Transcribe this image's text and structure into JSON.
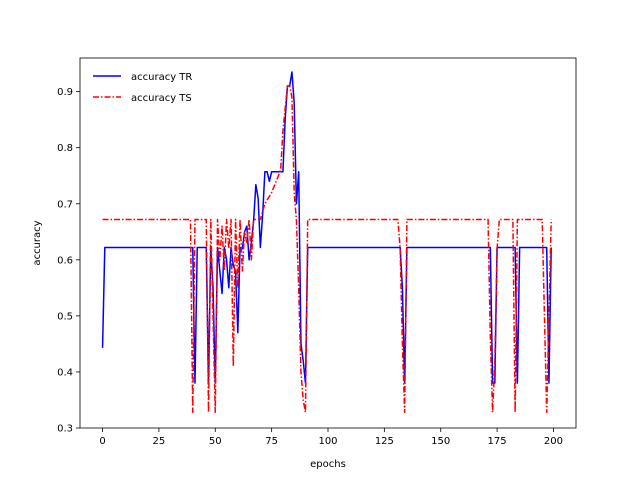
{
  "chart_data": {
    "type": "line",
    "xlabel": "epochs",
    "ylabel": "accuracy",
    "xlim": [
      -10,
      210
    ],
    "ylim": [
      0.3,
      0.96
    ],
    "xticks": [
      0,
      25,
      50,
      75,
      100,
      125,
      150,
      175,
      200
    ],
    "yticks": [
      0.3,
      0.4,
      0.5,
      0.6,
      0.7,
      0.8,
      0.9
    ],
    "ytick_labels": [
      "0.3",
      "0.4",
      "0.5",
      "0.6",
      "0.7",
      "0.8",
      "0.9"
    ],
    "grid": false,
    "legend_position": "top-left",
    "series": [
      {
        "name": "accuracy TR",
        "color": "#0000ff",
        "linestyle": "solid",
        "points": [
          [
            0,
            0.443
          ],
          [
            1,
            0.622
          ],
          [
            40,
            0.622
          ],
          [
            41,
            0.38
          ],
          [
            42,
            0.622
          ],
          [
            46,
            0.622
          ],
          [
            47,
            0.38
          ],
          [
            48,
            0.622
          ],
          [
            49,
            0.55
          ],
          [
            50,
            0.38
          ],
          [
            51,
            0.622
          ],
          [
            53,
            0.54
          ],
          [
            54,
            0.622
          ],
          [
            55,
            0.6
          ],
          [
            56,
            0.55
          ],
          [
            57,
            0.622
          ],
          [
            58,
            0.59
          ],
          [
            59,
            0.58
          ],
          [
            60,
            0.47
          ],
          [
            61,
            0.622
          ],
          [
            62,
            0.62
          ],
          [
            63,
            0.65
          ],
          [
            64,
            0.66
          ],
          [
            65,
            0.6
          ],
          [
            66,
            0.63
          ],
          [
            67,
            0.67
          ],
          [
            68,
            0.734
          ],
          [
            69,
            0.71
          ],
          [
            70,
            0.622
          ],
          [
            71,
            0.68
          ],
          [
            72,
            0.757
          ],
          [
            73,
            0.757
          ],
          [
            74,
            0.74
          ],
          [
            75,
            0.757
          ],
          [
            80,
            0.757
          ],
          [
            81,
            0.85
          ],
          [
            82,
            0.91
          ],
          [
            83,
            0.91
          ],
          [
            84,
            0.935
          ],
          [
            85,
            0.88
          ],
          [
            86,
            0.7
          ],
          [
            87,
            0.757
          ],
          [
            88,
            0.45
          ],
          [
            89,
            0.42
          ],
          [
            90,
            0.38
          ],
          [
            91,
            0.622
          ],
          [
            132,
            0.622
          ],
          [
            133,
            0.55
          ],
          [
            134,
            0.38
          ],
          [
            135,
            0.622
          ],
          [
            172,
            0.622
          ],
          [
            173,
            0.38
          ],
          [
            174,
            0.38
          ],
          [
            175,
            0.622
          ],
          [
            183,
            0.622
          ],
          [
            184,
            0.38
          ],
          [
            185,
            0.622
          ],
          [
            197,
            0.622
          ],
          [
            198,
            0.38
          ],
          [
            199,
            0.622
          ]
        ]
      },
      {
        "name": "accuracy TS",
        "color": "#ff0000",
        "linestyle": "dashdot",
        "points": [
          [
            0,
            0.672
          ],
          [
            39,
            0.672
          ],
          [
            40,
            0.328
          ],
          [
            41,
            0.672
          ],
          [
            46,
            0.672
          ],
          [
            47,
            0.328
          ],
          [
            48,
            0.672
          ],
          [
            49,
            0.5
          ],
          [
            50,
            0.328
          ],
          [
            51,
            0.672
          ],
          [
            52,
            0.6
          ],
          [
            53,
            0.66
          ],
          [
            54,
            0.58
          ],
          [
            55,
            0.672
          ],
          [
            56,
            0.62
          ],
          [
            57,
            0.672
          ],
          [
            58,
            0.41
          ],
          [
            59,
            0.672
          ],
          [
            60,
            0.55
          ],
          [
            61,
            0.672
          ],
          [
            62,
            0.58
          ],
          [
            63,
            0.65
          ],
          [
            64,
            0.63
          ],
          [
            65,
            0.672
          ],
          [
            66,
            0.6
          ],
          [
            67,
            0.672
          ],
          [
            70,
            0.672
          ],
          [
            72,
            0.7
          ],
          [
            75,
            0.72
          ],
          [
            79,
            0.76
          ],
          [
            80,
            0.83
          ],
          [
            81,
            0.87
          ],
          [
            82,
            0.91
          ],
          [
            83,
            0.91
          ],
          [
            84,
            0.89
          ],
          [
            85,
            0.72
          ],
          [
            86,
            0.67
          ],
          [
            87,
            0.55
          ],
          [
            88,
            0.4
          ],
          [
            89,
            0.35
          ],
          [
            90,
            0.328
          ],
          [
            91,
            0.672
          ],
          [
            131,
            0.672
          ],
          [
            132,
            0.62
          ],
          [
            133,
            0.45
          ],
          [
            134,
            0.328
          ],
          [
            135,
            0.672
          ],
          [
            171,
            0.672
          ],
          [
            172,
            0.46
          ],
          [
            173,
            0.328
          ],
          [
            174,
            0.42
          ],
          [
            175,
            0.62
          ],
          [
            176,
            0.672
          ],
          [
            182,
            0.672
          ],
          [
            183,
            0.328
          ],
          [
            184,
            0.672
          ],
          [
            195,
            0.672
          ],
          [
            196,
            0.5
          ],
          [
            197,
            0.328
          ],
          [
            198,
            0.5
          ],
          [
            199,
            0.672
          ]
        ]
      }
    ]
  }
}
